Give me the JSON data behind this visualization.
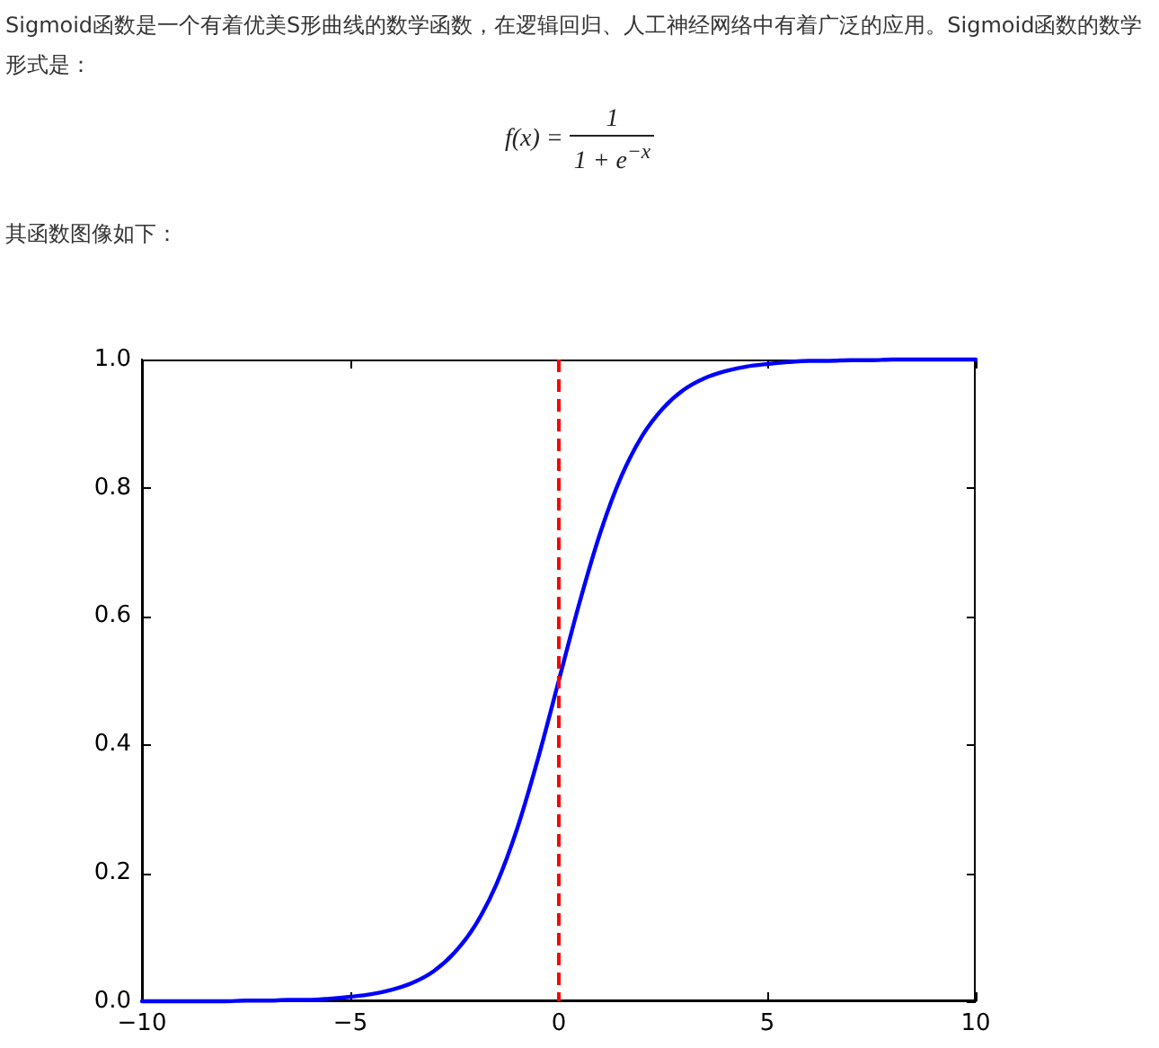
{
  "chart_data": {
    "type": "line",
    "annotations": [
      "Sigmoid函数是一个有着优美S形曲线的数学函数，在逻辑回归、人工神经网络中有着广泛的应用。Sigmoid函数的数学形式是：",
      "f(x) =",
      "1",
      "1 + e$^{−x}$",
      "其函数图像如下："
    ],
    "x": [
      -10,
      -9.5,
      -9,
      -8.5,
      -8,
      -7.5,
      -7,
      -6.5,
      -6,
      -5.5,
      -5,
      -4.5,
      -4,
      -3.5,
      -3,
      -2.5,
      -2,
      -1.5,
      -1,
      -0.5,
      0,
      0.5,
      1,
      1.5,
      2,
      2.5,
      3,
      3.5,
      4,
      4.5,
      5,
      5.5,
      6,
      6.5,
      7,
      7.5,
      8,
      8.5,
      9,
      9.5,
      10
    ],
    "values": [
      0,
      0,
      0,
      0,
      0,
      0.001,
      0.001,
      0.002,
      0.002,
      0.004,
      0.007,
      0.011,
      0.018,
      0.029,
      0.047,
      0.076,
      0.119,
      0.182,
      0.269,
      0.378,
      0.5,
      0.622,
      0.731,
      0.818,
      0.881,
      0.924,
      0.953,
      0.971,
      0.982,
      0.989,
      0.993,
      0.996,
      0.998,
      0.998,
      0.999,
      0.999,
      1,
      1,
      1,
      1,
      1
    ],
    "color": "#0000ff",
    "xlim": [
      -10,
      10
    ],
    "xticks": [
      {
        "value": -10,
        "label": "−10"
      },
      {
        "value": -5,
        "label": "−5"
      },
      0,
      5,
      10
    ],
    "ylim": [
      0,
      1
    ],
    "yticks": [
      {
        "value": 0,
        "label": "0.0"
      },
      0.2,
      0.4,
      0.6,
      0.8,
      {
        "value": 1,
        "label": "1.0"
      }
    ],
    "ref_lines": [
      {
        "axis": "x",
        "value": 0,
        "color": "#ff0000",
        "line_style": "dashed"
      }
    ],
    "marker": "none"
  }
}
